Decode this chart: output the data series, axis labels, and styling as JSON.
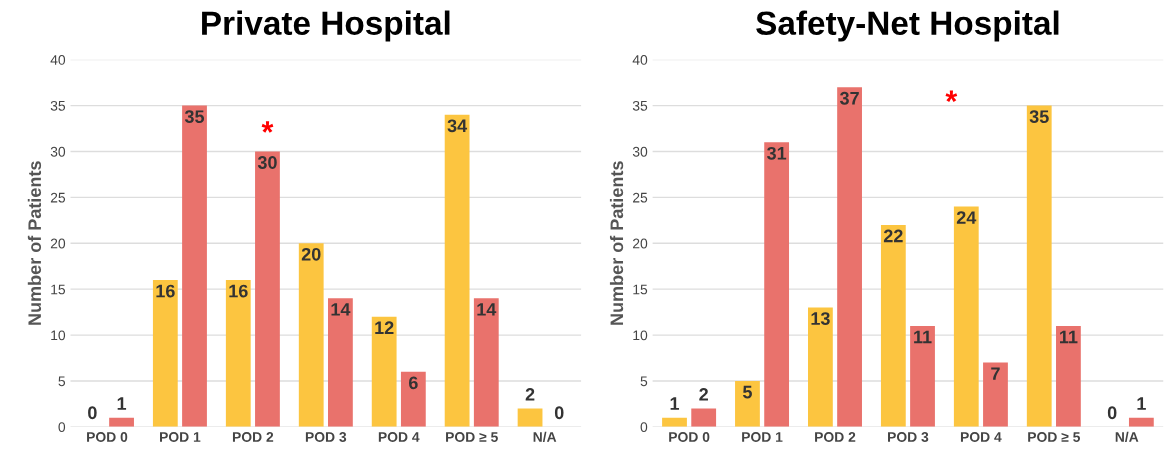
{
  "chart_data": [
    {
      "type": "bar",
      "title": "Private Hospital",
      "ylabel": "Number of Patients",
      "categories": [
        "POD 0",
        "POD 1",
        "POD 2",
        "POD 3",
        "POD 4",
        "POD ≥ 5",
        "N/A"
      ],
      "series": [
        {
          "color": "#fcc540",
          "values": [
            0,
            16,
            16,
            20,
            12,
            34,
            2
          ]
        },
        {
          "color": "#e9726c",
          "values": [
            1,
            35,
            30,
            14,
            6,
            14,
            0
          ]
        }
      ],
      "ylim": [
        0,
        40
      ],
      "yticks": [
        0,
        5,
        10,
        15,
        20,
        25,
        30,
        35,
        40
      ],
      "grid": "y",
      "data_labels": true,
      "annotations": [
        {
          "text": "*",
          "x": "POD 2",
          "y": 30
        }
      ]
    },
    {
      "type": "bar",
      "title": "Safety-Net Hospital",
      "ylabel": "Number of Patients",
      "categories": [
        "POD 0",
        "POD 1",
        "POD 2",
        "POD 3",
        "POD 4",
        "POD ≥ 5",
        "N/A"
      ],
      "series": [
        {
          "color": "#fcc540",
          "values": [
            1,
            5,
            13,
            22,
            24,
            35,
            0
          ]
        },
        {
          "color": "#e9726c",
          "values": [
            2,
            31,
            37,
            11,
            7,
            11,
            1
          ]
        }
      ],
      "ylim": [
        0,
        40
      ],
      "yticks": [
        0,
        5,
        10,
        15,
        20,
        25,
        30,
        35,
        40
      ],
      "grid": "y",
      "data_labels": true,
      "annotations": [
        "*"
      ]
    }
  ]
}
